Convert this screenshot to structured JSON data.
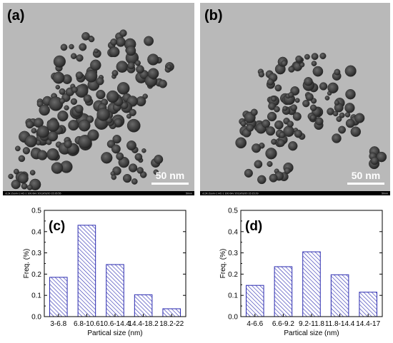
{
  "figure": {
    "panels": [
      {
        "label": "(a)",
        "scale_bar": "50 nm",
        "footer_text": "x12k Zoom-1 HC-1 100.0kV 2013/03/20 15:26:55",
        "footer_right": "50nm"
      },
      {
        "label": "(b)",
        "scale_bar": "50 nm",
        "footer_text": "x12k Zoom-1 HC-1 100.0kV 2013/03/20 15:15:29",
        "footer_right": "50nm"
      }
    ]
  },
  "chart_data": [
    {
      "type": "bar",
      "panel_label": "(c)",
      "categories": [
        "3-6.8",
        "6.8-10.6",
        "10.6-14.4",
        "14.4-18.2",
        "18.2-22"
      ],
      "values": [
        0.185,
        0.43,
        0.245,
        0.103,
        0.037
      ],
      "xlabel": "Partical size (nm)",
      "ylabel": "Freq. (%)",
      "ylim": [
        0.0,
        0.5
      ],
      "yticks": [
        "0.0",
        "0.1",
        "0.2",
        "0.3",
        "0.4",
        "0.5"
      ],
      "bar_fill": "hatched",
      "bar_color": "#2b2bb0",
      "grid": false
    },
    {
      "type": "bar",
      "panel_label": "(d)",
      "categories": [
        "4-6.6",
        "6.6-9.2",
        "9.2-11.8",
        "11.8-14.4",
        "14.4-17"
      ],
      "values": [
        0.147,
        0.235,
        0.305,
        0.197,
        0.115
      ],
      "xlabel": "Partical size (nm)",
      "ylabel": "Freq. (%)",
      "ylim": [
        0.0,
        0.5
      ],
      "yticks": [
        "0.0",
        "0.1",
        "0.2",
        "0.3",
        "0.4",
        "0.5"
      ],
      "bar_fill": "hatched",
      "bar_color": "#2b2bb0",
      "grid": false
    }
  ]
}
